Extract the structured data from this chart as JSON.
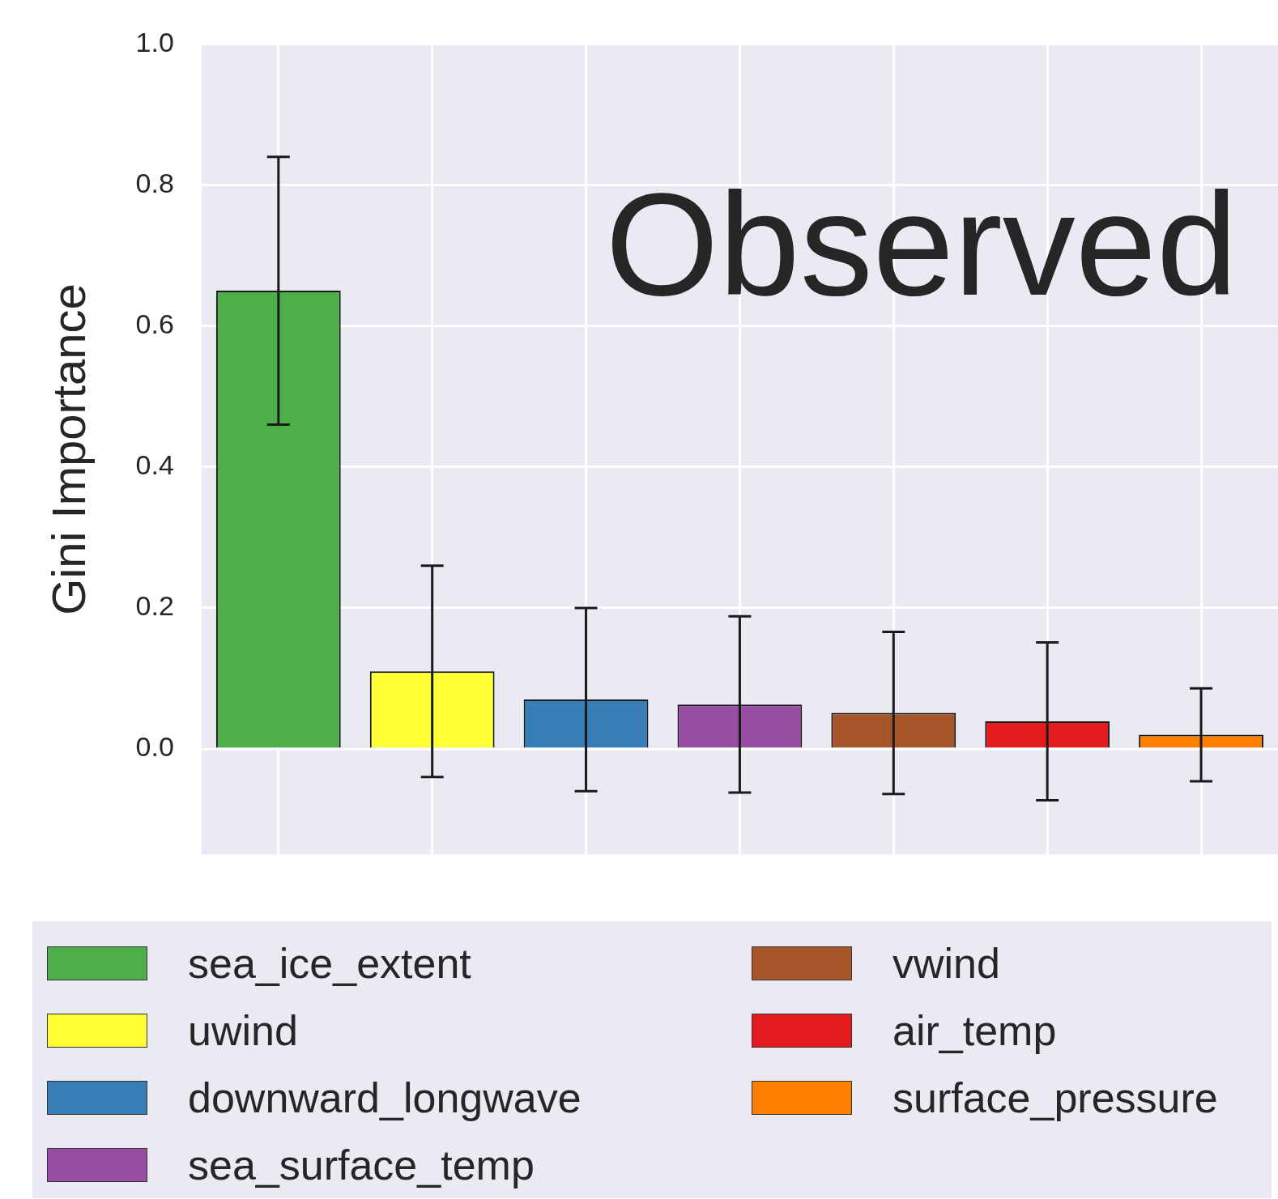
{
  "chart_data": {
    "type": "bar",
    "categories": [
      null,
      null,
      null,
      null,
      null,
      null,
      null
    ],
    "ylabel": "Gini Importance",
    "annotations": [
      "Observed"
    ],
    "ylim": [
      -0.15,
      1.0
    ],
    "yticks": [
      {
        "value": 0,
        "label": "0.0"
      },
      {
        "value": 0.2,
        "label": "0.2"
      },
      {
        "value": 0.4,
        "label": "0.4"
      },
      {
        "value": 0.6,
        "label": "0.6"
      },
      {
        "value": 0.8,
        "label": "0.8"
      },
      {
        "value": 1,
        "label": "1.0"
      }
    ],
    "grid": true,
    "legend": "bottom",
    "tick_labels": "y",
    "series": [
      {
        "name": "sea_ice_extent",
        "color": "#4daf4a",
        "values": [
          0.65,
          null,
          null,
          null,
          null,
          null,
          null
        ],
        "errors": [
          0.19,
          null,
          null,
          null,
          null,
          null,
          null
        ]
      },
      {
        "name": "uwind",
        "color": "#ffff33",
        "values": [
          null,
          0.11,
          null,
          null,
          null,
          null,
          null
        ],
        "errors": [
          null,
          0.15,
          null,
          null,
          null,
          null,
          null
        ]
      },
      {
        "name": "downward_longwave",
        "color": "#377eb8",
        "values": [
          null,
          null,
          0.07,
          null,
          null,
          null,
          null
        ],
        "errors": [
          null,
          null,
          0.13,
          null,
          null,
          null,
          null
        ]
      },
      {
        "name": "sea_surface_temp",
        "color": "#984ea3",
        "values": [
          null,
          null,
          null,
          0.063,
          null,
          null,
          null
        ],
        "errors": [
          null,
          null,
          null,
          0.125,
          null,
          null,
          null
        ]
      },
      {
        "name": "vwind",
        "color": "#a65628",
        "values": [
          null,
          null,
          null,
          null,
          0.051,
          null,
          null
        ],
        "errors": [
          null,
          null,
          null,
          null,
          0.115,
          null,
          null
        ]
      },
      {
        "name": "air_temp",
        "color": "#e41a1c",
        "values": [
          null,
          null,
          null,
          null,
          null,
          0.039,
          null
        ],
        "errors": [
          null,
          null,
          null,
          null,
          null,
          0.112,
          null
        ]
      },
      {
        "name": "surface_pressure",
        "color": "#ff7f00",
        "values": [
          null,
          null,
          null,
          null,
          null,
          null,
          0.02
        ],
        "errors": [
          null,
          null,
          null,
          null,
          null,
          null,
          0.066
        ]
      }
    ]
  }
}
